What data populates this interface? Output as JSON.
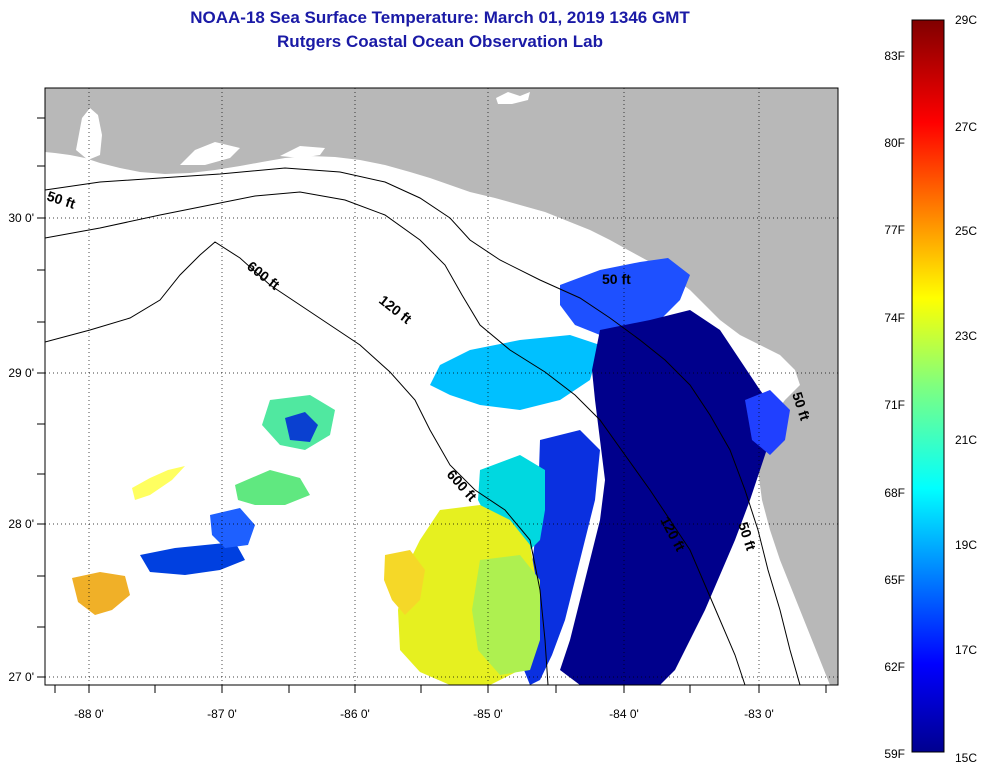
{
  "title": {
    "line1": "NOAA-18 Sea Surface Temperature:  March 01, 2019 1346 GMT",
    "line2": "Rutgers Coastal Ocean Observation Lab"
  },
  "map": {
    "latitude_labels": [
      "30 0'",
      "29 0'",
      "28 0'",
      "27 0'"
    ],
    "longitude_labels": [
      "-88 0'",
      "-87 0'",
      "-86 0'",
      "-85 0'",
      "-84 0'",
      "-83 0'"
    ],
    "depth_contour_labels": [
      "50 ft",
      "600 ft",
      "120 ft",
      "50 ft",
      "600 ft",
      "120 ft",
      "50 ft",
      "50 ft"
    ],
    "colors": {
      "land": "#b8b8b8",
      "no_data_clouds": "#ffffff",
      "cold": "#00008c",
      "warm": "#f0f000"
    }
  },
  "colorbar": {
    "fahrenheit_labels": [
      "83F",
      "80F",
      "77F",
      "74F",
      "71F",
      "68F",
      "65F",
      "62F",
      "59F"
    ],
    "celsius_labels": [
      "29C",
      "27C",
      "25C",
      "23C",
      "21C",
      "19C",
      "17C",
      "15C"
    ],
    "range_celsius": [
      15,
      29
    ],
    "range_fahrenheit": [
      59,
      84.2
    ],
    "colormap": "jet"
  }
}
